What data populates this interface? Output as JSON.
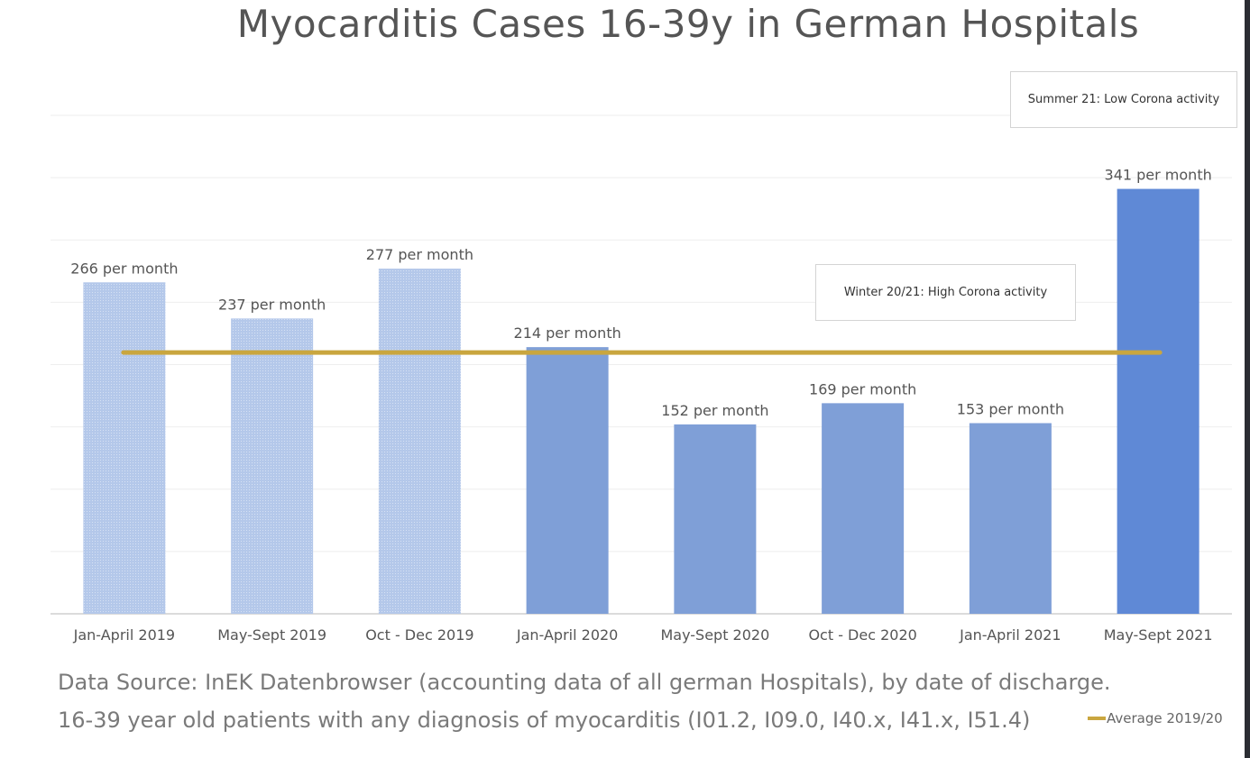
{
  "chart_data": {
    "type": "bar",
    "title": "Myocarditis Cases 16-39y in German Hospitals",
    "xlabel": "",
    "ylabel": "",
    "ylim": [
      0,
      400
    ],
    "grid": true,
    "categories": [
      "Jan-April 2019",
      "May-Sept 2019",
      "Oct - Dec 2019",
      "Jan-April 2020",
      "May-Sept 2020",
      "Oct - Dec 2020",
      "Jan-April 2021",
      "May-Sept 2021"
    ],
    "values": [
      266,
      237,
      277,
      214,
      152,
      169,
      153,
      341
    ],
    "data_labels": [
      "266 per month",
      "237 per month",
      "277 per month",
      "214 per month",
      "152 per month",
      "169 per month",
      "153 per month",
      "341 per month"
    ],
    "bar_colors": [
      "#b4c8ea",
      "#b4c8ea",
      "#b4c8ea",
      "#7f9fd7",
      "#7f9fd7",
      "#7f9fd7",
      "#7f9fd7",
      "#5f89d6"
    ],
    "average": {
      "name": "Average 2019/20",
      "value": 209.7,
      "color": "#c9a63f"
    },
    "legend": "bottom-right",
    "annotations": [
      "Summer 21: Low Corona activity",
      "Winter 20/21: High Corona activity"
    ]
  },
  "source_lines": [
    "Data Source: InEK Datenbrowser (accounting data of all german Hospitals), by date of discharge.",
    "16-39 year old patients with any diagnosis of myocarditis (I01.2, I09.0, I40.x, I41.x, I51.4)"
  ]
}
